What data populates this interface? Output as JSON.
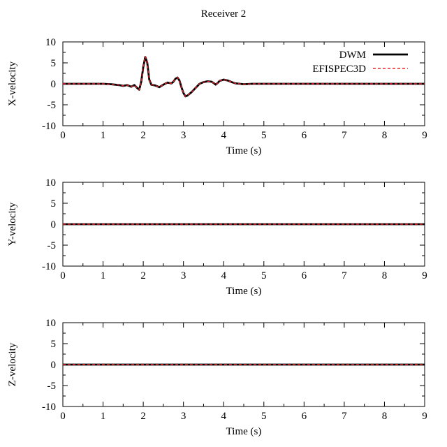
{
  "figure_title": "Receiver 2",
  "colors": {
    "dwm": "#000000",
    "efispec": "#e8262b",
    "axis": "#000000"
  },
  "chart_data": [
    {
      "type": "line",
      "xlabel": "Time (s)",
      "ylabel": "X-velocity",
      "xlim": [
        0,
        9
      ],
      "ylim": [
        -10,
        10
      ],
      "x_ticks": [
        0,
        1,
        2,
        3,
        4,
        5,
        6,
        7,
        8,
        9
      ],
      "y_ticks": [
        -10,
        -5,
        0,
        5,
        10
      ],
      "grid": false,
      "legend": "top-right",
      "series": [
        {
          "name": "DWM",
          "style": "solid",
          "x": [
            0,
            0.5,
            1.0,
            1.2,
            1.4,
            1.5,
            1.6,
            1.7,
            1.78,
            1.85,
            1.9,
            1.95,
            2.0,
            2.05,
            2.1,
            2.15,
            2.2,
            2.3,
            2.4,
            2.5,
            2.6,
            2.7,
            2.75,
            2.8,
            2.85,
            2.9,
            2.95,
            3.0,
            3.05,
            3.1,
            3.2,
            3.3,
            3.4,
            3.5,
            3.6,
            3.7,
            3.75,
            3.8,
            3.85,
            3.9,
            4.0,
            4.1,
            4.2,
            4.3,
            4.5,
            4.7,
            5.0,
            5.5,
            6,
            7,
            8,
            9
          ],
          "y": [
            0,
            0,
            0,
            -0.1,
            -0.3,
            -0.5,
            -0.3,
            -0.7,
            -0.3,
            -1.0,
            -1.4,
            0.5,
            4.0,
            6.4,
            5.0,
            1.0,
            -0.2,
            -0.4,
            -0.8,
            -0.2,
            0.3,
            0.1,
            0.5,
            1.2,
            1.5,
            0.8,
            -0.8,
            -2.2,
            -3.0,
            -2.8,
            -2.0,
            -1.0,
            0.0,
            0.4,
            0.6,
            0.5,
            0.2,
            -0.2,
            0.2,
            0.7,
            1.0,
            0.8,
            0.4,
            0.1,
            -0.1,
            0,
            0,
            0,
            0,
            0,
            0,
            0
          ]
        },
        {
          "name": "EFISPEC3D",
          "style": "dashed",
          "x": [
            0,
            0.5,
            1.0,
            1.2,
            1.4,
            1.5,
            1.6,
            1.7,
            1.78,
            1.85,
            1.9,
            1.95,
            2.0,
            2.05,
            2.1,
            2.15,
            2.2,
            2.3,
            2.4,
            2.5,
            2.6,
            2.7,
            2.75,
            2.8,
            2.85,
            2.9,
            2.95,
            3.0,
            3.05,
            3.1,
            3.2,
            3.3,
            3.4,
            3.5,
            3.6,
            3.7,
            3.75,
            3.8,
            3.85,
            3.9,
            4.0,
            4.1,
            4.2,
            4.3,
            4.5,
            4.7,
            5.0,
            5.5,
            6,
            7,
            8,
            9
          ],
          "y": [
            0,
            0,
            0,
            -0.1,
            -0.3,
            -0.5,
            -0.3,
            -0.7,
            -0.3,
            -1.0,
            -1.4,
            0.5,
            4.0,
            6.5,
            5.0,
            1.0,
            -0.2,
            -0.4,
            -0.8,
            -0.2,
            0.3,
            0.1,
            0.5,
            1.2,
            1.5,
            0.8,
            -0.8,
            -2.2,
            -3.0,
            -2.8,
            -2.0,
            -1.0,
            0.0,
            0.4,
            0.6,
            0.5,
            0.2,
            -0.2,
            0.2,
            0.7,
            1.0,
            0.8,
            0.4,
            0.1,
            -0.1,
            0,
            0,
            0,
            0,
            0,
            0,
            0
          ]
        }
      ]
    },
    {
      "type": "line",
      "xlabel": "Time (s)",
      "ylabel": "Y-velocity",
      "xlim": [
        0,
        9
      ],
      "ylim": [
        -10,
        10
      ],
      "x_ticks": [
        0,
        1,
        2,
        3,
        4,
        5,
        6,
        7,
        8,
        9
      ],
      "y_ticks": [
        -10,
        -5,
        0,
        5,
        10
      ],
      "grid": false,
      "series": [
        {
          "name": "DWM",
          "style": "solid",
          "x": [
            0,
            9
          ],
          "y": [
            0,
            0
          ]
        },
        {
          "name": "EFISPEC3D",
          "style": "dashed",
          "x": [
            0,
            9
          ],
          "y": [
            0,
            0
          ]
        }
      ]
    },
    {
      "type": "line",
      "xlabel": "Time (s)",
      "ylabel": "Z-velocity",
      "xlim": [
        0,
        9
      ],
      "ylim": [
        -10,
        10
      ],
      "x_ticks": [
        0,
        1,
        2,
        3,
        4,
        5,
        6,
        7,
        8,
        9
      ],
      "y_ticks": [
        -10,
        -5,
        0,
        5,
        10
      ],
      "grid": false,
      "series": [
        {
          "name": "DWM",
          "style": "solid",
          "x": [
            0,
            9
          ],
          "y": [
            0,
            0
          ]
        },
        {
          "name": "EFISPEC3D",
          "style": "dashed",
          "x": [
            0,
            9
          ],
          "y": [
            0,
            0
          ]
        }
      ]
    }
  ]
}
